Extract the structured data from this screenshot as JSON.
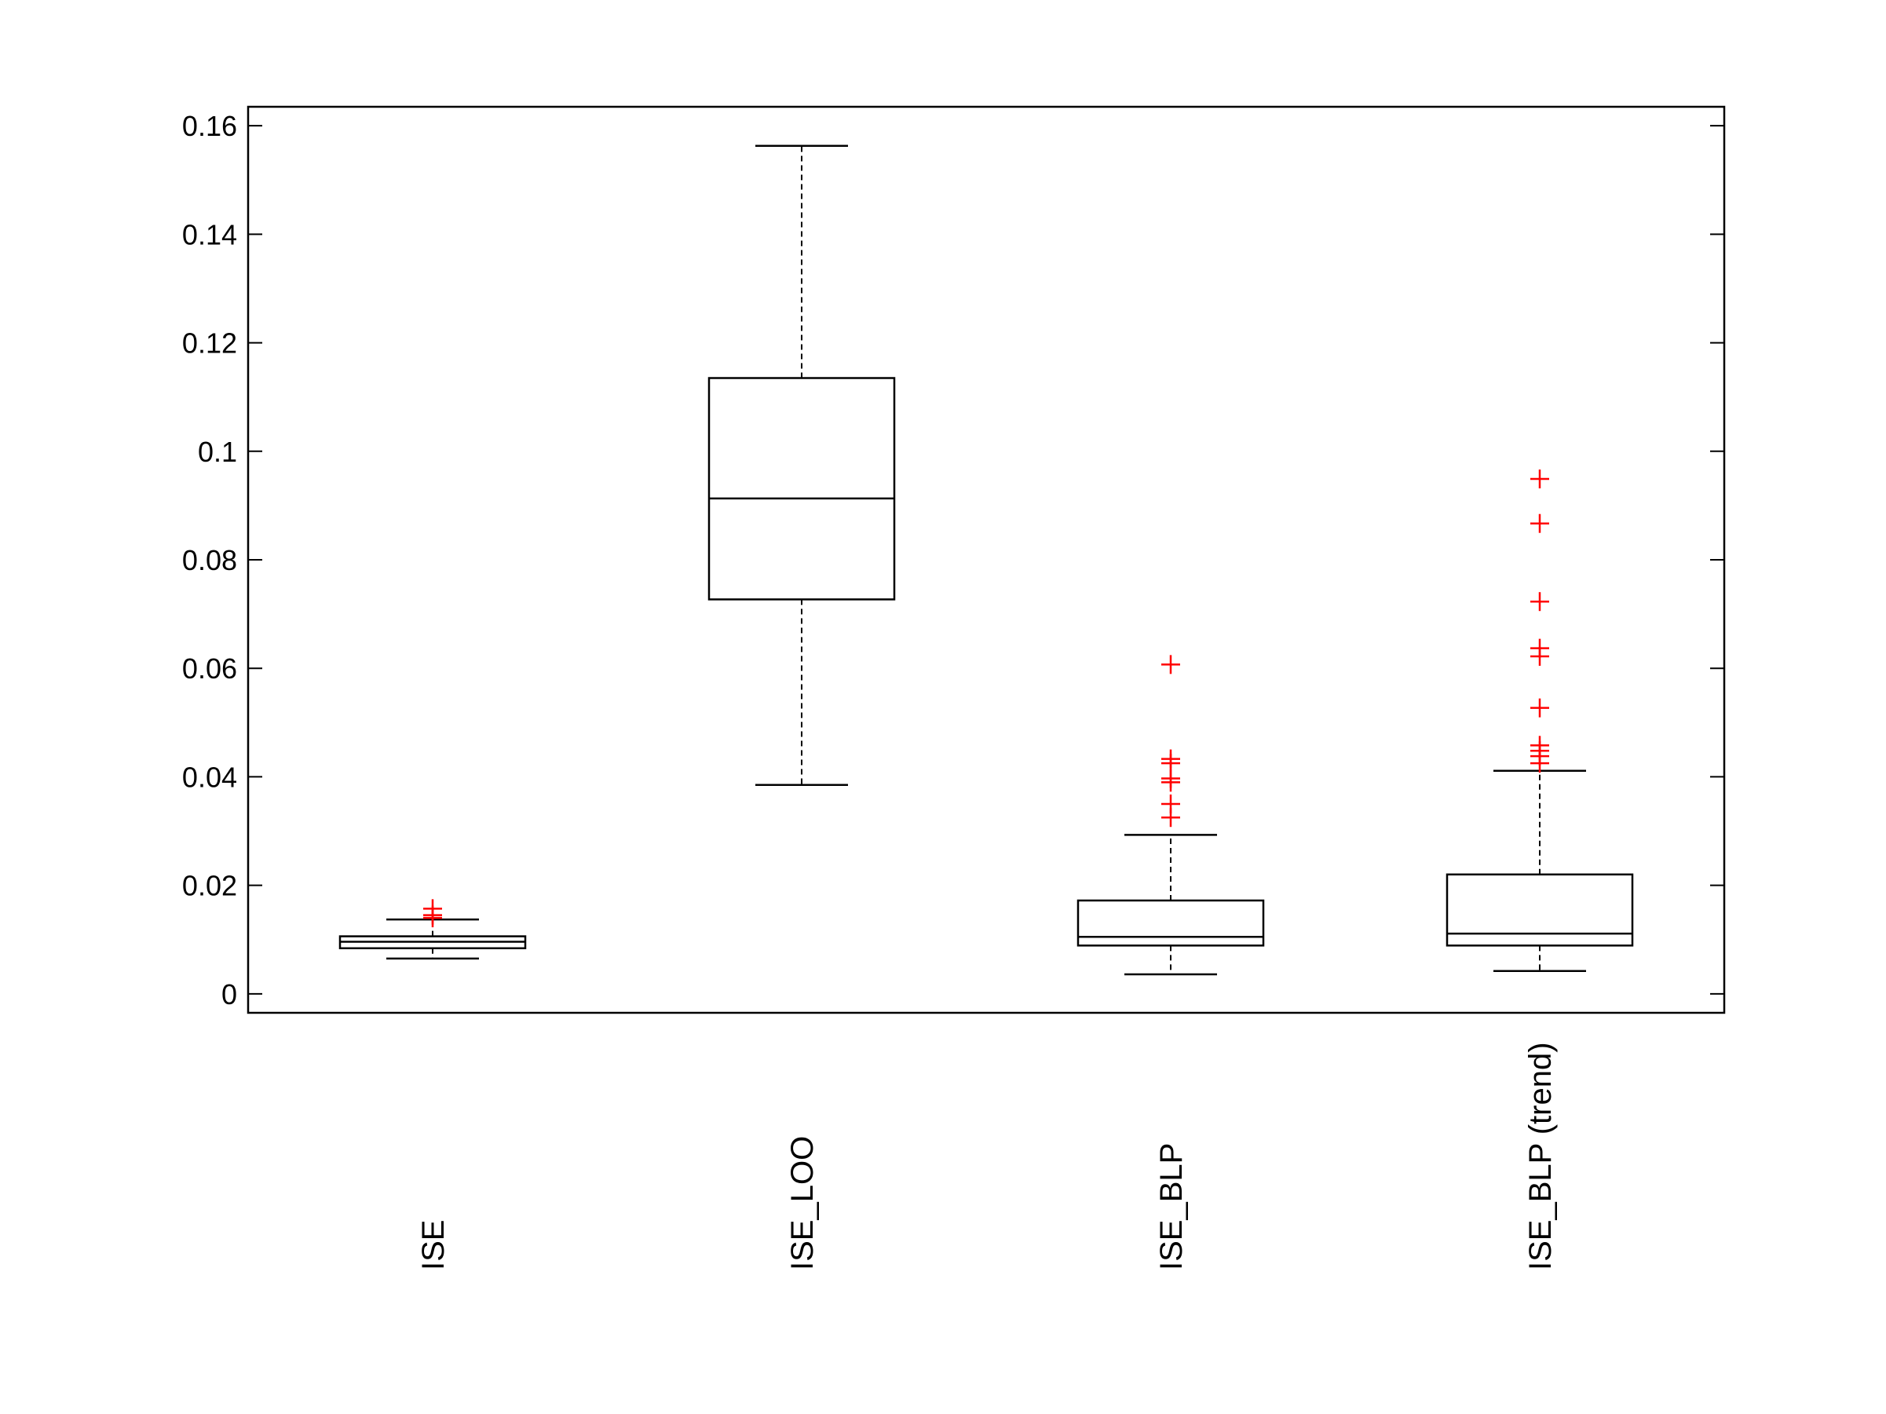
{
  "chart_data": {
    "type": "box",
    "title": "",
    "xlabel": "",
    "ylabel": "",
    "ylim": [
      -0.0035,
      0.1635
    ],
    "yticks": [
      0,
      0.02,
      0.04,
      0.06,
      0.08,
      0.1,
      0.12,
      0.14,
      0.16
    ],
    "ytick_labels": [
      "0",
      "0.02",
      "0.04",
      "0.06",
      "0.08",
      "0.1",
      "0.12",
      "0.14",
      "0.16"
    ],
    "grid": false,
    "legend": "none",
    "colors": {
      "box": "#000000",
      "outlier": "#ff0000"
    },
    "categories": [
      "ISE",
      "ISE_LOO",
      "ISE_BLP",
      "ISE_BLP (trend)"
    ],
    "boxes": [
      {
        "category": "ISE",
        "whisker_low": 0.0065,
        "q1": 0.0084,
        "median": 0.0096,
        "q3": 0.0106,
        "whisker_high": 0.0137,
        "outliers": [
          0.014,
          0.0145,
          0.0157
        ]
      },
      {
        "category": "ISE_LOO",
        "whisker_low": 0.0385,
        "q1": 0.0727,
        "median": 0.0913,
        "q3": 0.1135,
        "whisker_high": 0.1563,
        "outliers": []
      },
      {
        "category": "ISE_BLP",
        "whisker_low": 0.0036,
        "q1": 0.0089,
        "median": 0.0105,
        "q3": 0.0172,
        "whisker_high": 0.0293,
        "outliers": [
          0.0325,
          0.035,
          0.039,
          0.0397,
          0.0425,
          0.0433,
          0.0607
        ]
      },
      {
        "category": "ISE_BLP (trend)",
        "whisker_low": 0.0042,
        "q1": 0.0089,
        "median": 0.0111,
        "q3": 0.022,
        "whisker_high": 0.0411,
        "outliers": [
          0.0425,
          0.0438,
          0.0448,
          0.0458,
          0.0527,
          0.0622,
          0.0637,
          0.0723,
          0.0867,
          0.0949
        ]
      }
    ]
  }
}
